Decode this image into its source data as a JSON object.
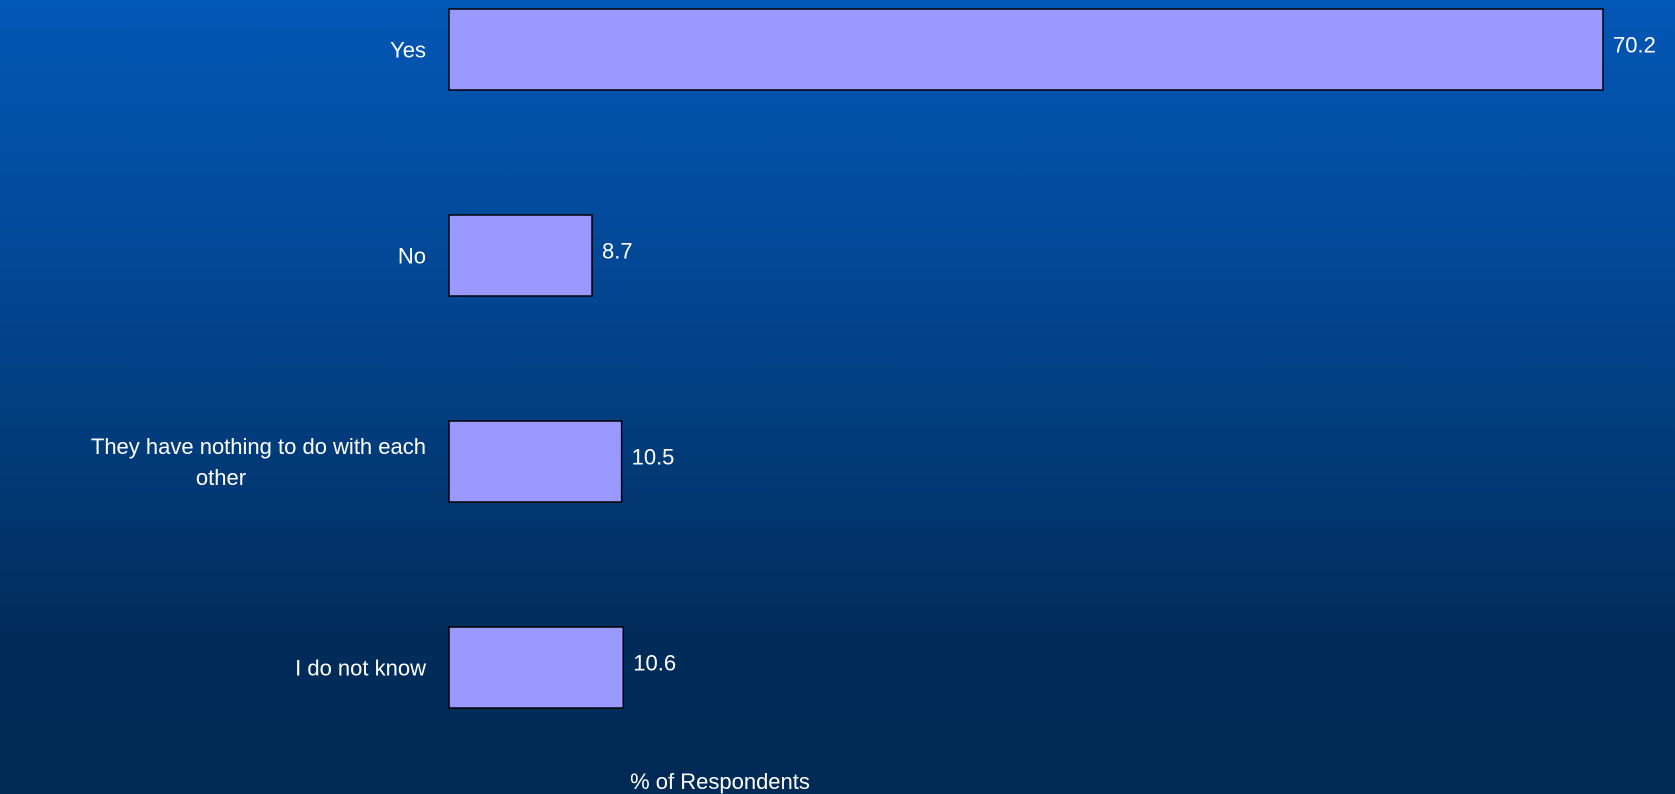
{
  "chart_data": {
    "type": "bar",
    "orientation": "horizontal",
    "categories": [
      [
        "Yes"
      ],
      [
        "No"
      ],
      [
        "They have nothing to do with each",
        "other"
      ],
      [
        "I do not know"
      ]
    ],
    "values": [
      70.2,
      8.7,
      10.5,
      10.6
    ],
    "data_labels": [
      "70.2",
      "8.7",
      "10.5",
      "10.6"
    ],
    "title": "",
    "xlabel": "% of Respondents",
    "ylabel": "",
    "xlim": [
      0,
      70.2
    ],
    "grid": false,
    "legend": "none",
    "colors": {
      "bar_fill": "#9999ff",
      "bar_stroke": "#000000",
      "text": "#ffffff",
      "background_top": "#0357b6",
      "background_bottom": "#012a55"
    }
  }
}
